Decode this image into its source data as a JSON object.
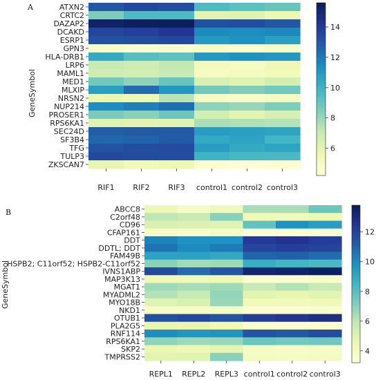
{
  "chart_data": [
    {
      "type": "heatmap",
      "panel_label": "A",
      "ylabel": "GeneSymbol",
      "xlabel": "",
      "columns": [
        "RIF1",
        "RIF2",
        "RIF3",
        "control1",
        "control2",
        "control3"
      ],
      "rows": [
        "ATXN2",
        "CRTC2",
        "DAZAP2",
        "DCAKD",
        "ESRP1",
        "GPN3",
        "HLA-DRB1",
        "LRP6",
        "MAML1",
        "MED1",
        "MLXIP",
        "NRSN2",
        "NUP214",
        "PROSER1",
        "RPS6KA1",
        "SEC24D",
        "SF3B4",
        "TFG",
        "TULP3",
        "ZKSCAN7"
      ],
      "values": [
        [
          13.0,
          13.5,
          13.3,
          9.6,
          9.3,
          9.0
        ],
        [
          8.5,
          9.6,
          9.6,
          6.0,
          6.2,
          5.6
        ],
        [
          15.2,
          15.4,
          15.5,
          13.2,
          13.3,
          13.0
        ],
        [
          13.6,
          13.8,
          14.2,
          11.5,
          11.4,
          11.6
        ],
        [
          13.2,
          13.3,
          13.5,
          11.0,
          11.3,
          10.8
        ],
        [
          4.8,
          4.5,
          4.6,
          4.8,
          4.6,
          4.9
        ],
        [
          10.4,
          9.4,
          9.2,
          11.0,
          11.2,
          11.1
        ],
        [
          7.0,
          6.8,
          7.1,
          5.2,
          5.0,
          5.4
        ],
        [
          6.8,
          6.6,
          7.0,
          5.0,
          5.1,
          5.3
        ],
        [
          8.8,
          8.2,
          9.0,
          6.4,
          6.1,
          6.6
        ],
        [
          10.8,
          12.4,
          11.1,
          8.8,
          8.4,
          8.8
        ],
        [
          5.7,
          5.6,
          7.3,
          5.0,
          4.8,
          5.1
        ],
        [
          11.4,
          11.8,
          12.3,
          8.2,
          8.0,
          8.5
        ],
        [
          8.6,
          8.3,
          8.9,
          6.6,
          6.0,
          6.5
        ],
        [
          6.2,
          6.0,
          6.1,
          7.6,
          7.5,
          7.4
        ],
        [
          12.8,
          12.9,
          12.9,
          10.9,
          10.8,
          10.6
        ],
        [
          12.5,
          12.6,
          12.9,
          10.4,
          10.6,
          9.9
        ],
        [
          13.1,
          13.3,
          13.4,
          10.9,
          10.4,
          10.6
        ],
        [
          13.5,
          13.4,
          13.3,
          10.0,
          9.8,
          9.7
        ],
        [
          5.8,
          5.4,
          5.6,
          4.6,
          4.3,
          4.5
        ]
      ],
      "colorbar": {
        "min": 4.2,
        "max": 15.6,
        "ticks": [
          6,
          8,
          10,
          12,
          14
        ]
      }
    },
    {
      "type": "heatmap",
      "panel_label": "B",
      "ylabel": "GeneSymbol",
      "xlabel": "",
      "columns": [
        "REPL1",
        "REPL2",
        "REPL3",
        "control1",
        "control2",
        "control3"
      ],
      "rows": [
        "ABCC8",
        "C2orf48",
        "CD96",
        "CFAP161",
        "DDT",
        "DDTL; DDT",
        "FAM49B",
        "HSPB2; C11orf52; HSPB2-C11orf52",
        "IVNS1ABP",
        "MAP3K13",
        "MGAT1",
        "MYADML2",
        "MYO18B",
        "NKD1",
        "OTUB1",
        "PLA2G5",
        "RNF114",
        "RPS6KA1",
        "SKP2",
        "TMPRSS2"
      ],
      "values": [
        [
          4.5,
          3.9,
          4.3,
          6.4,
          6.4,
          7.6
        ],
        [
          6.0,
          5.8,
          7.0,
          4.3,
          4.2,
          4.5
        ],
        [
          5.2,
          5.1,
          5.0,
          7.8,
          9.8,
          9.4
        ],
        [
          3.8,
          3.7,
          3.9,
          3.4,
          3.5,
          3.6
        ],
        [
          10.2,
          9.8,
          9.8,
          12.3,
          12.6,
          12.2
        ],
        [
          10.6,
          10.0,
          10.4,
          11.9,
          12.1,
          12.0
        ],
        [
          9.2,
          9.3,
          9.0,
          11.0,
          11.1,
          10.8
        ],
        [
          7.0,
          6.5,
          6.6,
          8.8,
          8.5,
          8.3
        ],
        [
          11.8,
          10.8,
          11.4,
          13.3,
          13.4,
          13.6
        ],
        [
          4.4,
          4.3,
          4.4,
          3.6,
          3.5,
          3.7
        ],
        [
          6.6,
          6.4,
          6.6,
          5.8,
          6.2,
          5.8
        ],
        [
          6.2,
          5.8,
          6.8,
          4.9,
          4.7,
          4.9
        ],
        [
          5.0,
          5.2,
          6.7,
          4.2,
          4.2,
          4.3
        ],
        [
          3.8,
          3.8,
          3.9,
          3.5,
          3.5,
          3.6
        ],
        [
          11.6,
          11.8,
          11.5,
          12.2,
          12.5,
          12.8
        ],
        [
          4.7,
          4.6,
          4.3,
          3.6,
          3.5,
          3.6
        ],
        [
          9.9,
          9.6,
          9.7,
          11.5,
          11.3,
          11.7
        ],
        [
          6.9,
          6.6,
          6.7,
          7.6,
          7.4,
          7.5
        ],
        [
          4.6,
          4.4,
          4.8,
          3.9,
          3.8,
          3.9
        ],
        [
          4.9,
          5.0,
          7.0,
          4.0,
          3.9,
          4.0
        ]
      ],
      "colorbar": {
        "min": 3.2,
        "max": 13.8,
        "ticks": [
          4,
          6,
          8,
          10,
          12
        ]
      }
    }
  ]
}
